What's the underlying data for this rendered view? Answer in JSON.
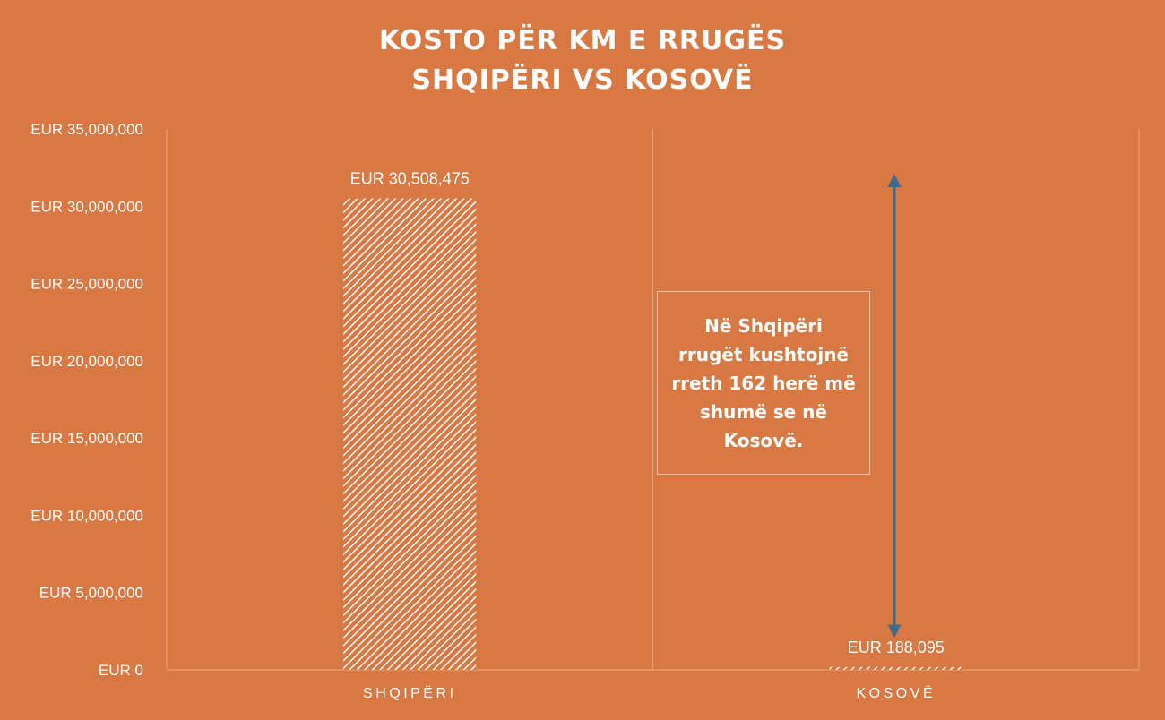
{
  "chart_data": {
    "type": "bar",
    "title_lines": [
      "KOSTO PËR KM E RRUGËS",
      "SHQIPËRI VS KOSOVË"
    ],
    "categories": [
      "SHQIPËRI",
      "KOSOVË"
    ],
    "values": [
      30508475,
      188095
    ],
    "data_labels": [
      "EUR 30,508,475",
      "EUR 188,095"
    ],
    "y_ticks": [
      {
        "value": 0,
        "label": "EUR 0"
      },
      {
        "value": 5000000,
        "label": "EUR 5,000,000"
      },
      {
        "value": 10000000,
        "label": "EUR 10,000,000"
      },
      {
        "value": 15000000,
        "label": "EUR 15,000,000"
      },
      {
        "value": 20000000,
        "label": "EUR 20,000,000"
      },
      {
        "value": 25000000,
        "label": "EUR 25,000,000"
      },
      {
        "value": 30000000,
        "label": "EUR 30,000,000"
      },
      {
        "value": 35000000,
        "label": "EUR 35,000,000"
      }
    ],
    "ylim": [
      0,
      35000000
    ],
    "grid": "vertical",
    "bar_fill": "hatched",
    "annotation": {
      "text": "Në Shqipëri rrugët kushtojnë rreth 162 herë më shumë se në Kosovë.",
      "arrow_from": 188095,
      "arrow_to": 30508475
    }
  },
  "colors": {
    "background": "#d87842",
    "bar_hatch": "#ffffff",
    "arrow": "#3d6b8e",
    "grid": "#e9a27c"
  }
}
